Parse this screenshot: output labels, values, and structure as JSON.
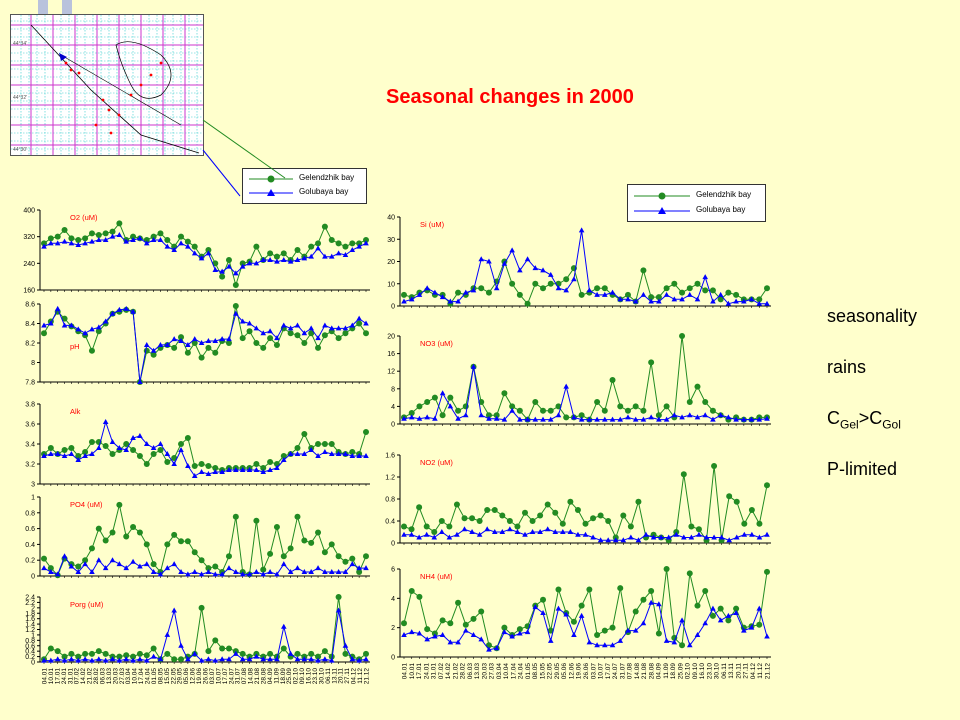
{
  "title": "Seasonal changes  in 2000",
  "side_notes": {
    "line1": "seasonality",
    "line2": "rains",
    "line3_main_a": "C",
    "line3_sub_a": "Gel",
    "line3_mid": ">C",
    "line3_sub_b": "Gol",
    "line4": "P-limited"
  },
  "map": {
    "lat_labels": [
      "44°34'",
      "44°32'",
      "44°30'"
    ]
  },
  "legend": {
    "gelendzhik": "Gelendzhik bay",
    "golubaya": "Golubaya bay"
  },
  "colors": {
    "gelendzhik": "#228b22",
    "golubaya": "#0000ff",
    "panel_label": "#ff0000",
    "background": "#ffffcc"
  },
  "chart_data": [
    {
      "type": "line",
      "label": "O2 (uM)",
      "ylim": [
        160,
        400
      ],
      "yticks": [
        "160",
        "240",
        "320",
        "400"
      ],
      "series": [
        {
          "name": "Gelendzhik bay",
          "values": [
            300,
            315,
            320,
            340,
            315,
            310,
            315,
            330,
            325,
            330,
            335,
            360,
            310,
            320,
            315,
            310,
            320,
            330,
            310,
            290,
            320,
            305,
            290,
            260,
            280,
            240,
            200,
            250,
            175,
            240,
            245,
            290,
            250,
            270,
            260,
            270,
            250,
            280,
            260,
            290,
            300,
            350,
            310,
            300,
            290,
            300,
            300,
            310
          ]
        },
        {
          "name": "Golubaya bay",
          "values": [
            290,
            300,
            300,
            305,
            300,
            295,
            300,
            305,
            310,
            310,
            320,
            325,
            305,
            310,
            315,
            300,
            310,
            310,
            290,
            280,
            300,
            290,
            270,
            255,
            270,
            220,
            215,
            230,
            210,
            230,
            240,
            240,
            250,
            250,
            245,
            250,
            245,
            250,
            255,
            260,
            285,
            260,
            260,
            270,
            265,
            280,
            290,
            300
          ]
        }
      ]
    },
    {
      "type": "line",
      "label": "pH",
      "ylim": [
        7.8,
        8.6
      ],
      "yticks": [
        "7.8",
        "8",
        "8.2",
        "8.4",
        "8.6"
      ],
      "series": [
        {
          "name": "Gelendzhik bay",
          "values": [
            8.3,
            8.42,
            8.52,
            8.45,
            8.37,
            8.32,
            8.28,
            8.12,
            8.32,
            8.4,
            8.5,
            8.52,
            8.54,
            8.52,
            7.8,
            8.12,
            8.08,
            8.15,
            8.18,
            8.15,
            8.26,
            8.1,
            8.2,
            8.05,
            8.15,
            8.1,
            8.22,
            8.2,
            8.58,
            8.25,
            8.32,
            8.2,
            8.15,
            8.25,
            8.18,
            8.35,
            8.3,
            8.28,
            8.2,
            8.3,
            8.15,
            8.28,
            8.32,
            8.25,
            8.3,
            8.35,
            8.4,
            8.3
          ]
        },
        {
          "name": "Golubaya bay",
          "values": [
            8.38,
            8.4,
            8.55,
            8.38,
            8.38,
            8.34,
            8.3,
            8.34,
            8.36,
            8.42,
            8.5,
            8.54,
            8.55,
            8.52,
            7.8,
            8.18,
            8.12,
            8.18,
            8.18,
            8.24,
            8.22,
            8.18,
            8.24,
            8.2,
            8.22,
            8.22,
            8.24,
            8.24,
            8.5,
            8.42,
            8.4,
            8.35,
            8.3,
            8.32,
            8.25,
            8.38,
            8.35,
            8.38,
            8.3,
            8.35,
            8.25,
            8.38,
            8.35,
            8.35,
            8.35,
            8.38,
            8.45,
            8.4
          ]
        }
      ]
    },
    {
      "type": "line",
      "label": "Alk",
      "ylim": [
        3,
        3.8
      ],
      "yticks": [
        "3",
        "3.2",
        "3.4",
        "3.6",
        "3.8"
      ],
      "series": [
        {
          "name": "Gelendzhik bay",
          "values": [
            3.3,
            3.36,
            3.3,
            3.34,
            3.36,
            3.28,
            3.32,
            3.42,
            3.42,
            3.38,
            3.3,
            3.34,
            3.4,
            3.34,
            3.28,
            3.2,
            3.3,
            3.34,
            3.22,
            3.26,
            3.4,
            3.46,
            3.18,
            3.2,
            3.18,
            3.16,
            3.14,
            3.16,
            3.16,
            3.16,
            3.16,
            3.2,
            3.16,
            3.22,
            3.2,
            3.28,
            3.3,
            3.36,
            3.5,
            3.36,
            3.4,
            3.4,
            3.4,
            3.32,
            3.3,
            3.32,
            3.3,
            3.52
          ]
        },
        {
          "name": "Golubaya bay",
          "values": [
            3.28,
            3.3,
            3.3,
            3.28,
            3.3,
            3.24,
            3.28,
            3.3,
            3.36,
            3.62,
            3.42,
            3.36,
            3.34,
            3.46,
            3.48,
            3.4,
            3.36,
            3.4,
            3.3,
            3.2,
            3.34,
            3.18,
            3.08,
            3.12,
            3.1,
            3.12,
            3.12,
            3.14,
            3.14,
            3.14,
            3.14,
            3.14,
            3.12,
            3.14,
            3.16,
            3.24,
            3.3,
            3.3,
            3.3,
            3.34,
            3.28,
            3.32,
            3.3,
            3.3,
            3.3,
            3.28,
            3.28,
            3.28
          ]
        }
      ]
    },
    {
      "type": "line",
      "label": "PO4 (uM)",
      "ylim": [
        0,
        1
      ],
      "yticks": [
        "0",
        "0.2",
        "0.4",
        "0.6",
        "0.8",
        "1"
      ],
      "series": [
        {
          "name": "Gelendzhik bay",
          "values": [
            0.22,
            0.1,
            0.01,
            0.22,
            0.15,
            0.12,
            0.2,
            0.35,
            0.6,
            0.45,
            0.55,
            0.9,
            0.5,
            0.62,
            0.55,
            0.4,
            0.15,
            0.05,
            0.4,
            0.52,
            0.44,
            0.44,
            0.3,
            0.2,
            0.1,
            0.12,
            0.05,
            0.25,
            0.75,
            0.05,
            0.02,
            0.7,
            0.08,
            0.28,
            0.62,
            0.25,
            0.35,
            0.75,
            0.45,
            0.42,
            0.55,
            0.3,
            0.4,
            0.25,
            0.18,
            0.22,
            0.05,
            0.25
          ]
        },
        {
          "name": "Golubaya bay",
          "values": [
            0.1,
            0.05,
            0.02,
            0.25,
            0.12,
            0.05,
            0.15,
            0.05,
            0.2,
            0.1,
            0.2,
            0.15,
            0.1,
            0.18,
            0.12,
            0.15,
            0.05,
            0.02,
            0.1,
            0.15,
            0.05,
            0.02,
            0.05,
            0.02,
            0.05,
            0.02,
            0.02,
            0.1,
            0.05,
            0.02,
            0.02,
            0.05,
            0.02,
            0.05,
            0.02,
            0.15,
            0.05,
            0.1,
            0.05,
            0.05,
            0.1,
            0.05,
            0.05,
            0.05,
            0.05,
            0.15,
            0.1,
            0.1
          ]
        }
      ]
    },
    {
      "type": "line",
      "label": "Porg (uM)",
      "ylim": [
        0,
        2.4
      ],
      "yticks": [
        "0",
        "0.2",
        "0.4",
        "0.6",
        "0.8",
        "1",
        "1.2",
        "1.4",
        "1.6",
        "1.8",
        "2",
        "2.2",
        "2.4"
      ],
      "series": [
        {
          "name": "Gelendzhik bay",
          "values": [
            0.1,
            0.5,
            0.4,
            0.2,
            0.3,
            0.2,
            0.3,
            0.3,
            0.4,
            0.3,
            0.2,
            0.2,
            0.25,
            0.2,
            0.3,
            0.25,
            0.5,
            0.1,
            0.3,
            0.1,
            0.1,
            0.2,
            0.3,
            2.0,
            0.4,
            0.8,
            0.5,
            0.5,
            0.4,
            0.3,
            0.2,
            0.3,
            0.2,
            0.3,
            0.2,
            0.5,
            0.2,
            0.3,
            0.2,
            0.3,
            0.2,
            0.4,
            0.2,
            2.4,
            0.3,
            0.2,
            0.1,
            0.3
          ]
        },
        {
          "name": "Golubaya bay",
          "values": [
            0.05,
            0.05,
            0.1,
            0.05,
            0.1,
            0.05,
            0.1,
            0.05,
            0.1,
            0.05,
            0.1,
            0.05,
            0.1,
            0.05,
            0.1,
            0.05,
            0.2,
            0.1,
            1.0,
            1.9,
            0.6,
            0.1,
            0.3,
            0.05,
            0.1,
            0.05,
            0.1,
            0.1,
            0.3,
            0.1,
            0.1,
            0.2,
            0.1,
            0.1,
            0.1,
            1.3,
            0.3,
            0.1,
            0.1,
            0.1,
            0.05,
            0.1,
            0.05,
            1.9,
            0.6,
            0.1,
            0.05,
            0.1
          ]
        }
      ]
    },
    {
      "type": "line",
      "label": "Si (uM)",
      "ylim": [
        0,
        40
      ],
      "yticks": [
        "0",
        "10",
        "20",
        "30",
        "40"
      ],
      "series": [
        {
          "name": "Gelendzhik bay",
          "values": [
            5,
            4,
            6,
            7,
            5,
            5,
            1,
            6,
            5,
            8,
            8,
            6,
            11,
            20,
            10,
            5,
            1,
            10,
            8,
            10,
            10,
            12,
            17,
            5,
            6,
            8,
            8,
            5,
            3,
            5,
            2,
            16,
            4,
            4,
            8,
            10,
            6,
            8,
            10,
            7,
            7,
            3,
            6,
            5,
            3,
            3,
            3,
            8
          ]
        },
        {
          "name": "Golubaya bay",
          "values": [
            2,
            3,
            5,
            8,
            6,
            4,
            2,
            2,
            6,
            7,
            21,
            20,
            8,
            19,
            25,
            16,
            21,
            17,
            16,
            14,
            8,
            7,
            12,
            34,
            7,
            5,
            5,
            6,
            3,
            3,
            2,
            5,
            2,
            2,
            5,
            3,
            3,
            5,
            3,
            13,
            2,
            5,
            1,
            2,
            2,
            3,
            1,
            1
          ]
        }
      ]
    },
    {
      "type": "line",
      "label": "NO3 (uM)",
      "ylim": [
        0,
        20
      ],
      "yticks": [
        "0",
        "4",
        "8",
        "12",
        "16",
        "20"
      ],
      "series": [
        {
          "name": "Gelendzhik bay",
          "values": [
            1.5,
            2.5,
            4,
            5,
            6,
            2,
            6,
            3,
            4,
            13,
            5,
            2,
            2,
            7,
            4,
            3,
            1,
            5,
            3,
            3,
            4,
            1.5,
            1.5,
            2,
            1,
            5,
            3,
            10,
            4,
            3,
            4,
            3,
            14,
            2,
            4,
            1.5,
            20,
            5,
            8.5,
            5,
            3,
            2,
            1,
            1.5,
            1,
            1,
            1.5,
            1.5
          ]
        },
        {
          "name": "Golubaya bay",
          "values": [
            1.2,
            1.5,
            1.2,
            1.5,
            1.2,
            7,
            4,
            1.2,
            2,
            13,
            2,
            1.2,
            1.2,
            1,
            3,
            1,
            1,
            1,
            1,
            1,
            2,
            8.5,
            1.5,
            1,
            1,
            1,
            1,
            1,
            1,
            1.5,
            1,
            1,
            1.5,
            1,
            1,
            2,
            1.5,
            2,
            1.5,
            2,
            1,
            2,
            1.5,
            1,
            1,
            1,
            1,
            1.2
          ]
        }
      ]
    },
    {
      "type": "line",
      "label": "NO2 (uM)",
      "ylim": [
        0,
        1.6
      ],
      "yticks": [
        "0",
        "0.4",
        "0.8",
        "1.2",
        "1.6"
      ],
      "series": [
        {
          "name": "Gelendzhik bay",
          "values": [
            0.3,
            0.25,
            0.65,
            0.3,
            0.2,
            0.4,
            0.3,
            0.7,
            0.45,
            0.45,
            0.4,
            0.6,
            0.6,
            0.5,
            0.4,
            0.3,
            0.55,
            0.4,
            0.5,
            0.7,
            0.55,
            0.35,
            0.75,
            0.6,
            0.35,
            0.45,
            0.5,
            0.4,
            0.1,
            0.5,
            0.3,
            0.75,
            0.1,
            0.15,
            0.1,
            0.05,
            0.2,
            1.25,
            0.3,
            0.25,
            0.05,
            1.4,
            0.05,
            0.85,
            0.75,
            0.35,
            0.6,
            0.35,
            1.05
          ]
        },
        {
          "name": "Golubaya bay",
          "values": [
            0.15,
            0.15,
            0.1,
            0.15,
            0.1,
            0.2,
            0.1,
            0.15,
            0.25,
            0.2,
            0.15,
            0.25,
            0.2,
            0.2,
            0.25,
            0.2,
            0.15,
            0.2,
            0.2,
            0.25,
            0.2,
            0.2,
            0.2,
            0.15,
            0.15,
            0.1,
            0.05,
            0.05,
            0.05,
            0.05,
            0.1,
            0.05,
            0.15,
            0.1,
            0.1,
            0.1,
            0.15,
            0.1,
            0.1,
            0.15,
            0.1,
            0.1,
            0.1,
            0.05,
            0.1,
            0.15,
            0.15,
            0.1,
            0.15
          ]
        }
      ]
    },
    {
      "type": "line",
      "label": "NH4 (uM)",
      "ylim": [
        0,
        6
      ],
      "yticks": [
        "0",
        "2",
        "4",
        "6"
      ],
      "series": [
        {
          "name": "Gelendzhik bay",
          "values": [
            2.3,
            4.5,
            4.1,
            1.9,
            1.6,
            2.5,
            2.3,
            3.7,
            2.2,
            2.6,
            3.1,
            0.8,
            0.6,
            2.0,
            1.5,
            1.9,
            2.1,
            3.5,
            3.9,
            1.8,
            4.6,
            3.0,
            2.4,
            3.5,
            4.6,
            1.5,
            1.8,
            2.0,
            4.7,
            1.7,
            3.1,
            3.9,
            4.5,
            1.6,
            6.0,
            1.3,
            0.8,
            5.7,
            3.5,
            4.5,
            2.8,
            3.3,
            2.5,
            3.3,
            2.0,
            2.1,
            2.2,
            5.8
          ]
        },
        {
          "name": "Golubaya bay",
          "values": [
            1.5,
            1.7,
            1.6,
            1.2,
            1.4,
            1.5,
            1.0,
            1.0,
            1.8,
            1.5,
            1.2,
            0.5,
            0.6,
            1.7,
            1.4,
            1.6,
            1.7,
            3.4,
            3.0,
            1.1,
            3.3,
            2.9,
            1.5,
            2.8,
            1.0,
            0.8,
            0.8,
            0.8,
            1.1,
            1.8,
            1.8,
            2.3,
            3.7,
            3.6,
            1.1,
            1.0,
            2.5,
            0.8,
            1.5,
            2.3,
            3.3,
            2.5,
            2.8,
            3.0,
            1.8,
            2.0,
            3.3,
            1.4
          ]
        }
      ]
    }
  ],
  "x_dates": [
    "04.01",
    "10.01",
    "17.01",
    "24.01",
    "31.01",
    "07.02",
    "14.02",
    "21.02",
    "28.02",
    "06.03",
    "13.03",
    "20.03",
    "27.03",
    "03.04",
    "10.04",
    "17.04",
    "24.04",
    "01.05",
    "08.05",
    "15.05",
    "22.05",
    "29.05",
    "05.06",
    "12.06",
    "19.06",
    "26.06",
    "03.07",
    "10.07",
    "17.07",
    "24.07",
    "31.07",
    "07.08",
    "14.08",
    "21.08",
    "28.08",
    "04.09",
    "11.09",
    "18.09",
    "25.09",
    "02.10",
    "09.10",
    "16.10",
    "23.10",
    "30.10",
    "06.11",
    "13.11",
    "20.11",
    "27.11",
    "04.12",
    "11.12",
    "21.12"
  ]
}
